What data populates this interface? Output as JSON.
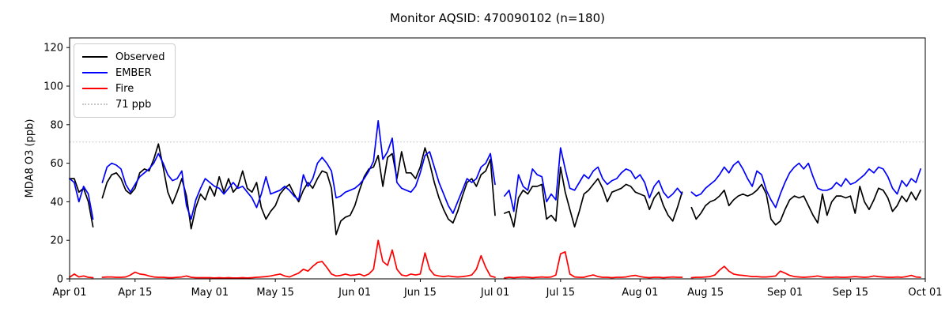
{
  "title": "Monitor AQSID: 470090102 (n=180)",
  "axes": {
    "ylabel": "MDA8 O3 (ppb)",
    "yticks": [
      0,
      20,
      40,
      60,
      80,
      100,
      120
    ],
    "ylim": [
      0,
      125
    ],
    "xlim_days": [
      0,
      183
    ],
    "xticks": [
      {
        "day": 0,
        "label": "Apr 01"
      },
      {
        "day": 14,
        "label": "Apr 15"
      },
      {
        "day": 30,
        "label": "May 01"
      },
      {
        "day": 44,
        "label": "May 15"
      },
      {
        "day": 61,
        "label": "Jun 01"
      },
      {
        "day": 75,
        "label": "Jun 15"
      },
      {
        "day": 91,
        "label": "Jul 01"
      },
      {
        "day": 105,
        "label": "Jul 15"
      },
      {
        "day": 122,
        "label": "Aug 01"
      },
      {
        "day": 136,
        "label": "Aug 15"
      },
      {
        "day": 153,
        "label": "Sep 01"
      },
      {
        "day": 167,
        "label": "Sep 15"
      },
      {
        "day": 183,
        "label": "Oct 01"
      }
    ],
    "grid": false
  },
  "legend": {
    "position": "upper-left",
    "items": [
      {
        "label": "Observed",
        "color": "#000000",
        "line_style": "solid"
      },
      {
        "label": "EMBER",
        "color": "#0000ff",
        "line_style": "solid"
      },
      {
        "label": "Fire",
        "color": "#ff0000",
        "line_style": "solid"
      },
      {
        "label": "71 ppb",
        "color": "#c9c9c9",
        "line_style": "dotted"
      }
    ]
  },
  "chart_data": {
    "type": "line",
    "title": "Monitor AQSID: 470090102 (n=180)",
    "xlabel": "",
    "ylabel": "MDA8 O3 (ppb)",
    "n_points": 180,
    "x_start_date": "Apr 01",
    "x_end_date": "Sep 30",
    "x_step": "1 day",
    "ylim": [
      0,
      125
    ],
    "legend_position": "upper left",
    "threshold": {
      "value": 71,
      "label": "71 ppb",
      "color": "#c9c9c9",
      "style": "dotted"
    },
    "missing_dates": [
      "Apr 07",
      "Jul 02",
      "Aug 11"
    ],
    "series": [
      {
        "name": "Observed",
        "color": "#000000",
        "values": [
          52,
          52,
          45,
          47,
          40,
          27,
          null,
          42,
          50,
          54,
          55,
          52,
          46,
          44,
          47,
          55,
          57,
          56,
          62,
          70,
          58,
          45,
          39,
          45,
          52,
          43,
          26,
          37,
          44,
          41,
          48,
          43,
          53,
          45,
          52,
          45,
          48,
          56,
          47,
          45,
          50,
          37,
          31,
          35,
          38,
          44,
          47,
          49,
          44,
          40,
          46,
          50,
          47,
          52,
          56,
          55,
          47,
          23,
          30,
          32,
          33,
          38,
          46,
          53,
          57,
          58,
          64,
          48,
          63,
          65,
          52,
          66,
          55,
          55,
          52,
          58,
          68,
          60,
          50,
          42,
          36,
          31,
          29,
          35,
          43,
          50,
          52,
          48,
          54,
          56,
          62,
          33,
          null,
          34,
          35,
          27,
          42,
          46,
          44,
          48,
          48,
          49,
          31,
          33,
          30,
          58,
          45,
          36,
          27,
          35,
          44,
          46,
          49,
          52,
          47,
          40,
          45,
          46,
          47,
          49,
          48,
          45,
          44,
          43,
          36,
          42,
          45,
          38,
          33,
          30,
          37,
          45,
          null,
          37,
          31,
          34,
          38,
          40,
          41,
          43,
          46,
          38,
          41,
          43,
          44,
          43,
          44,
          46,
          49,
          44,
          31,
          28,
          30,
          36,
          41,
          43,
          42,
          43,
          38,
          33,
          29,
          44,
          33,
          40,
          43,
          43,
          42,
          43,
          34,
          48,
          40,
          36,
          41,
          47,
          46,
          42,
          35,
          38,
          43,
          40,
          45,
          41,
          46
        ]
      },
      {
        "name": "EMBER",
        "color": "#0000ff",
        "values": [
          52,
          50,
          40,
          48,
          44,
          31,
          null,
          50,
          58,
          60,
          59,
          57,
          49,
          45,
          49,
          53,
          55,
          57,
          60,
          65,
          60,
          54,
          51,
          52,
          56,
          38,
          31,
          41,
          47,
          52,
          50,
          48,
          47,
          44,
          47,
          50,
          47,
          48,
          45,
          42,
          37,
          44,
          53,
          44,
          45,
          46,
          48,
          46,
          43,
          41,
          54,
          48,
          52,
          60,
          63,
          60,
          56,
          42,
          43,
          45,
          46,
          47,
          49,
          52,
          56,
          61,
          82,
          62,
          66,
          73,
          50,
          47,
          46,
          45,
          48,
          55,
          64,
          66,
          58,
          50,
          44,
          38,
          34,
          40,
          46,
          52,
          50,
          52,
          58,
          60,
          65,
          49,
          null,
          43,
          46,
          35,
          54,
          48,
          46,
          57,
          54,
          53,
          40,
          44,
          41,
          68,
          57,
          47,
          46,
          50,
          54,
          52,
          56,
          58,
          52,
          49,
          51,
          52,
          55,
          57,
          56,
          52,
          54,
          50,
          42,
          48,
          51,
          45,
          42,
          44,
          47,
          44,
          null,
          45,
          43,
          44,
          47,
          49,
          51,
          54,
          58,
          55,
          59,
          61,
          57,
          52,
          48,
          56,
          54,
          46,
          41,
          37,
          44,
          50,
          55,
          58,
          60,
          57,
          60,
          53,
          47,
          46,
          46,
          47,
          50,
          48,
          52,
          49,
          50,
          52,
          54,
          57,
          55,
          58,
          57,
          53,
          47,
          44,
          51,
          48,
          52,
          50,
          57
        ]
      },
      {
        "name": "Fire",
        "color": "#ff0000",
        "values": [
          0.8,
          2.5,
          1.0,
          1.5,
          0.8,
          0.6,
          null,
          0.8,
          1.0,
          1.0,
          0.8,
          0.8,
          1.0,
          2.0,
          3.5,
          2.5,
          2.2,
          1.5,
          1.0,
          0.8,
          0.8,
          0.6,
          0.6,
          0.8,
          1.0,
          1.5,
          0.8,
          0.6,
          0.6,
          0.6,
          0.6,
          0.5,
          0.6,
          0.5,
          0.6,
          0.5,
          0.5,
          0.6,
          0.5,
          0.6,
          0.8,
          1.0,
          1.2,
          1.5,
          2.0,
          2.5,
          1.5,
          1.0,
          2.0,
          3.0,
          5.0,
          4.0,
          6.5,
          8.5,
          9.0,
          6.0,
          2.5,
          1.5,
          1.8,
          2.5,
          1.8,
          2.0,
          2.5,
          1.5,
          2.5,
          5.0,
          20.0,
          9.0,
          7.0,
          15.0,
          5.0,
          2.0,
          1.5,
          2.5,
          2.0,
          2.5,
          13.5,
          5.0,
          2.0,
          1.5,
          1.2,
          1.5,
          1.2,
          1.0,
          1.2,
          1.5,
          2.0,
          5.0,
          12.0,
          6.0,
          1.5,
          0.8,
          null,
          0.5,
          0.8,
          0.6,
          0.8,
          1.0,
          0.8,
          0.6,
          0.8,
          1.0,
          0.8,
          1.0,
          2.0,
          13.0,
          14.0,
          2.5,
          1.0,
          0.8,
          0.8,
          1.5,
          2.0,
          1.2,
          0.8,
          0.8,
          0.6,
          0.8,
          0.8,
          1.0,
          1.5,
          1.8,
          1.2,
          0.8,
          0.6,
          0.8,
          0.8,
          0.6,
          0.8,
          1.0,
          0.8,
          0.8,
          null,
          0.6,
          0.8,
          0.8,
          1.0,
          1.2,
          2.0,
          4.5,
          6.5,
          4.0,
          2.5,
          2.0,
          1.8,
          1.5,
          1.2,
          1.2,
          1.0,
          1.0,
          1.2,
          1.5,
          4.0,
          3.0,
          1.8,
          1.2,
          1.0,
          0.8,
          1.0,
          1.2,
          1.5,
          1.0,
          0.8,
          0.8,
          1.0,
          0.8,
          0.8,
          1.0,
          1.2,
          1.0,
          0.8,
          1.0,
          1.5,
          1.2,
          1.0,
          0.8,
          0.8,
          1.0,
          0.8,
          1.2,
          1.8,
          1.0,
          0.8
        ]
      }
    ]
  }
}
